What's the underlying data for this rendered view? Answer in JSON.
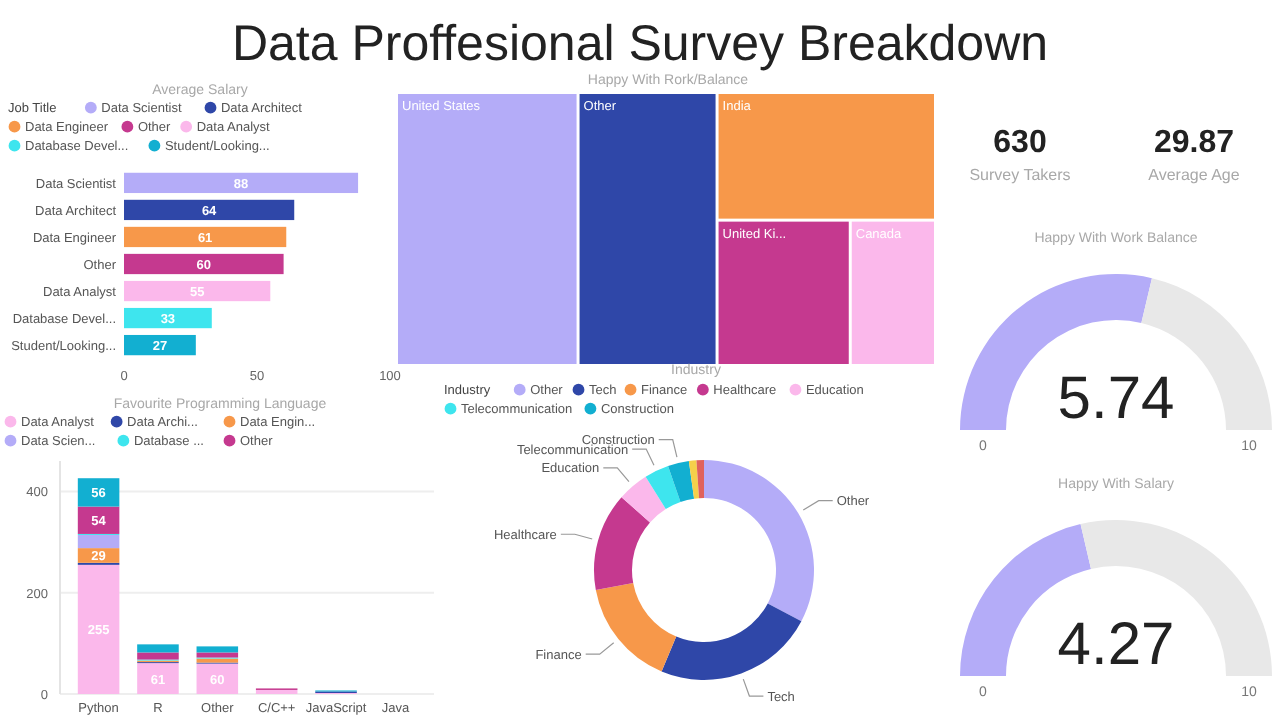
{
  "chart_data": [
    {
      "type": "other",
      "title": "Data Proffesional Survey Breakdown",
      "categories": [
        "Survey Takers",
        "Average Age"
      ],
      "values": [
        630,
        29.87
      ],
      "data_labels": true
    },
    {
      "type": "bar",
      "orientation": "horizontal",
      "title": "Average Salary",
      "legend_title": "Job Title",
      "categories": [
        "Data Scientist",
        "Data Architect",
        "Data Engineer",
        "Other",
        "Data Analyst",
        "Database Devel...",
        "Student/Looking..."
      ],
      "values": [
        88,
        64,
        61,
        60,
        55,
        33,
        27
      ],
      "colors": [
        "#b4acf8",
        "#2f47a8",
        "#f7984a",
        "#c5398f",
        "#fbb8eb",
        "#3ee5ee",
        "#12afd1"
      ],
      "xlim": [
        0,
        100
      ],
      "xticks": [
        0,
        50,
        100
      ],
      "data_labels": true
    },
    {
      "type": "other",
      "title": "Happy With Rork/Balance",
      "categories": [
        "United States",
        "Other",
        "India",
        "United Ki...",
        "Canada"
      ],
      "colors": [
        "#b4acf8",
        "#2f47a8",
        "#f7984a",
        "#c5398f",
        "#fbb8eb"
      ]
    },
    {
      "type": "donut",
      "title": "Happy With Work Balance",
      "values": [
        5.74,
        4.26
      ],
      "value_labels": [
        "5.74",
        null
      ],
      "colors": [
        "#b4acf8",
        "#e8e8e8"
      ],
      "annotations": [
        "0",
        "10"
      ]
    },
    {
      "type": "bar",
      "stacked": true,
      "title": "Favourite Programming Language",
      "legend": "top",
      "grid": "y",
      "categories": [
        "Python",
        "R",
        "Other",
        "C/C++",
        "JavaScript",
        "Java"
      ],
      "ylim": [
        0,
        460
      ],
      "yticks": [
        0,
        200,
        400
      ],
      "series": [
        {
          "name": "Data Analyst",
          "color": "#fbb8eb",
          "values": [
            255,
            61,
            60,
            8,
            2,
            null
          ],
          "value_labels": [
            "255",
            "61",
            "60",
            null,
            null,
            null
          ]
        },
        {
          "name": "Data Archi...",
          "color": "#2f47a8",
          "values": [
            4,
            2,
            2,
            0,
            3,
            0
          ]
        },
        {
          "name": "Data Engin...",
          "color": "#f7984a",
          "values": [
            29,
            3,
            8,
            0,
            0,
            0
          ],
          "value_labels": [
            "29",
            null,
            null,
            null,
            null,
            null
          ]
        },
        {
          "name": "Data Scien...",
          "color": "#b4acf8",
          "values": [
            26,
            null,
            null,
            0,
            0,
            0
          ]
        },
        {
          "name": "Database ...",
          "color": "#3ee5ee",
          "values": [
            2,
            2,
            2,
            0,
            0,
            0
          ]
        },
        {
          "name": "Other",
          "color": "#c5398f",
          "values": [
            54,
            14,
            10,
            3,
            0,
            0
          ],
          "value_labels": [
            "54",
            null,
            null,
            null,
            null,
            null
          ]
        },
        {
          "color": "#12afd1",
          "values": [
            56,
            16,
            12,
            0,
            2,
            0
          ],
          "value_labels": [
            "56",
            null,
            null,
            null,
            null,
            null
          ]
        }
      ]
    },
    {
      "type": "donut",
      "title": "Industry",
      "legend_title": "Industry",
      "legend": "top",
      "categories": [
        "Other",
        "Tech",
        "Finance",
        "Healthcare",
        "Education",
        "Telecommunication",
        "Construction",
        null,
        null
      ],
      "values": [
        32.7,
        23.6,
        15.8,
        14.4,
        4.6,
        3.6,
        3.1,
        1.1,
        1.1
      ],
      "colors": [
        "#b4acf8",
        "#2f47a8",
        "#f7984a",
        "#c5398f",
        "#fbb8eb",
        "#3ee5ee",
        "#12afd1",
        "#f5d04b",
        "#e0625c"
      ]
    },
    {
      "type": "donut",
      "title": "Happy With Salary",
      "values": [
        4.27,
        5.73
      ],
      "value_labels": [
        "4.27",
        null
      ],
      "colors": [
        "#b4acf8",
        "#e8e8e8"
      ],
      "annotations": [
        "0",
        "10"
      ]
    }
  ]
}
